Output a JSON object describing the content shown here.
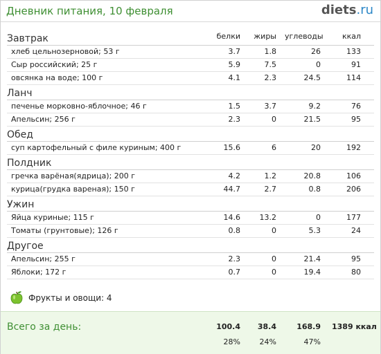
{
  "header": {
    "title": "Дневник питания, 10 февраля",
    "logo_main": "diets",
    "logo_tld": ".ru"
  },
  "columns": [
    "белки",
    "жиры",
    "углеводы",
    "ккал"
  ],
  "meals": [
    {
      "name": "Завтрак",
      "items": [
        {
          "name": "хлеб цельнозерновой; 53 г",
          "v": [
            "3.7",
            "1.8",
            "26",
            "133"
          ]
        },
        {
          "name": "Сыр российский; 25 г",
          "v": [
            "5.9",
            "7.5",
            "0",
            "91"
          ]
        },
        {
          "name": "овсянка на воде; 100 г",
          "v": [
            "4.1",
            "2.3",
            "24.5",
            "114"
          ]
        }
      ]
    },
    {
      "name": "Ланч",
      "items": [
        {
          "name": "печенье морковно-яблочное; 46 г",
          "v": [
            "1.5",
            "3.7",
            "9.2",
            "76"
          ]
        },
        {
          "name": "Апельсин; 256 г",
          "v": [
            "2.3",
            "0",
            "21.5",
            "95"
          ]
        }
      ]
    },
    {
      "name": "Обед",
      "items": [
        {
          "name": "суп картофельный с филе куриным; 400 г",
          "v": [
            "15.6",
            "6",
            "20",
            "192"
          ]
        }
      ]
    },
    {
      "name": "Полдник",
      "items": [
        {
          "name": "гречка варёная(ядрица); 200 г",
          "v": [
            "4.2",
            "1.2",
            "20.8",
            "106"
          ]
        },
        {
          "name": "курица(грудка вареная); 150 г",
          "v": [
            "44.7",
            "2.7",
            "0.8",
            "206"
          ]
        }
      ]
    },
    {
      "name": "Ужин",
      "items": [
        {
          "name": "Яйца куриные; 115 г",
          "v": [
            "14.6",
            "13.2",
            "0",
            "177"
          ]
        },
        {
          "name": "Томаты (грунтовые); 126 г",
          "v": [
            "0.8",
            "0",
            "5.3",
            "24"
          ]
        }
      ]
    },
    {
      "name": "Другое",
      "items": [
        {
          "name": "Апельсин; 255 г",
          "v": [
            "2.3",
            "0",
            "21.4",
            "95"
          ]
        },
        {
          "name": "Яблоки; 172 г",
          "v": [
            "0.7",
            "0",
            "19.4",
            "80"
          ]
        }
      ]
    }
  ],
  "fruits": {
    "text": "Фрукты и овощи: 4",
    "icon": "green-apple-icon"
  },
  "total": {
    "label": "Всего за день:",
    "protein": "100.4",
    "fat": "38.4",
    "carbs": "168.9",
    "kcal": "1389 ккал",
    "protein_pct": "28%",
    "fat_pct": "24%",
    "carbs_pct": "47%"
  },
  "colors": {
    "accent_green": "#3f8f33",
    "total_bg": "#eef8e8",
    "logo_tld": "#2c87c7"
  }
}
